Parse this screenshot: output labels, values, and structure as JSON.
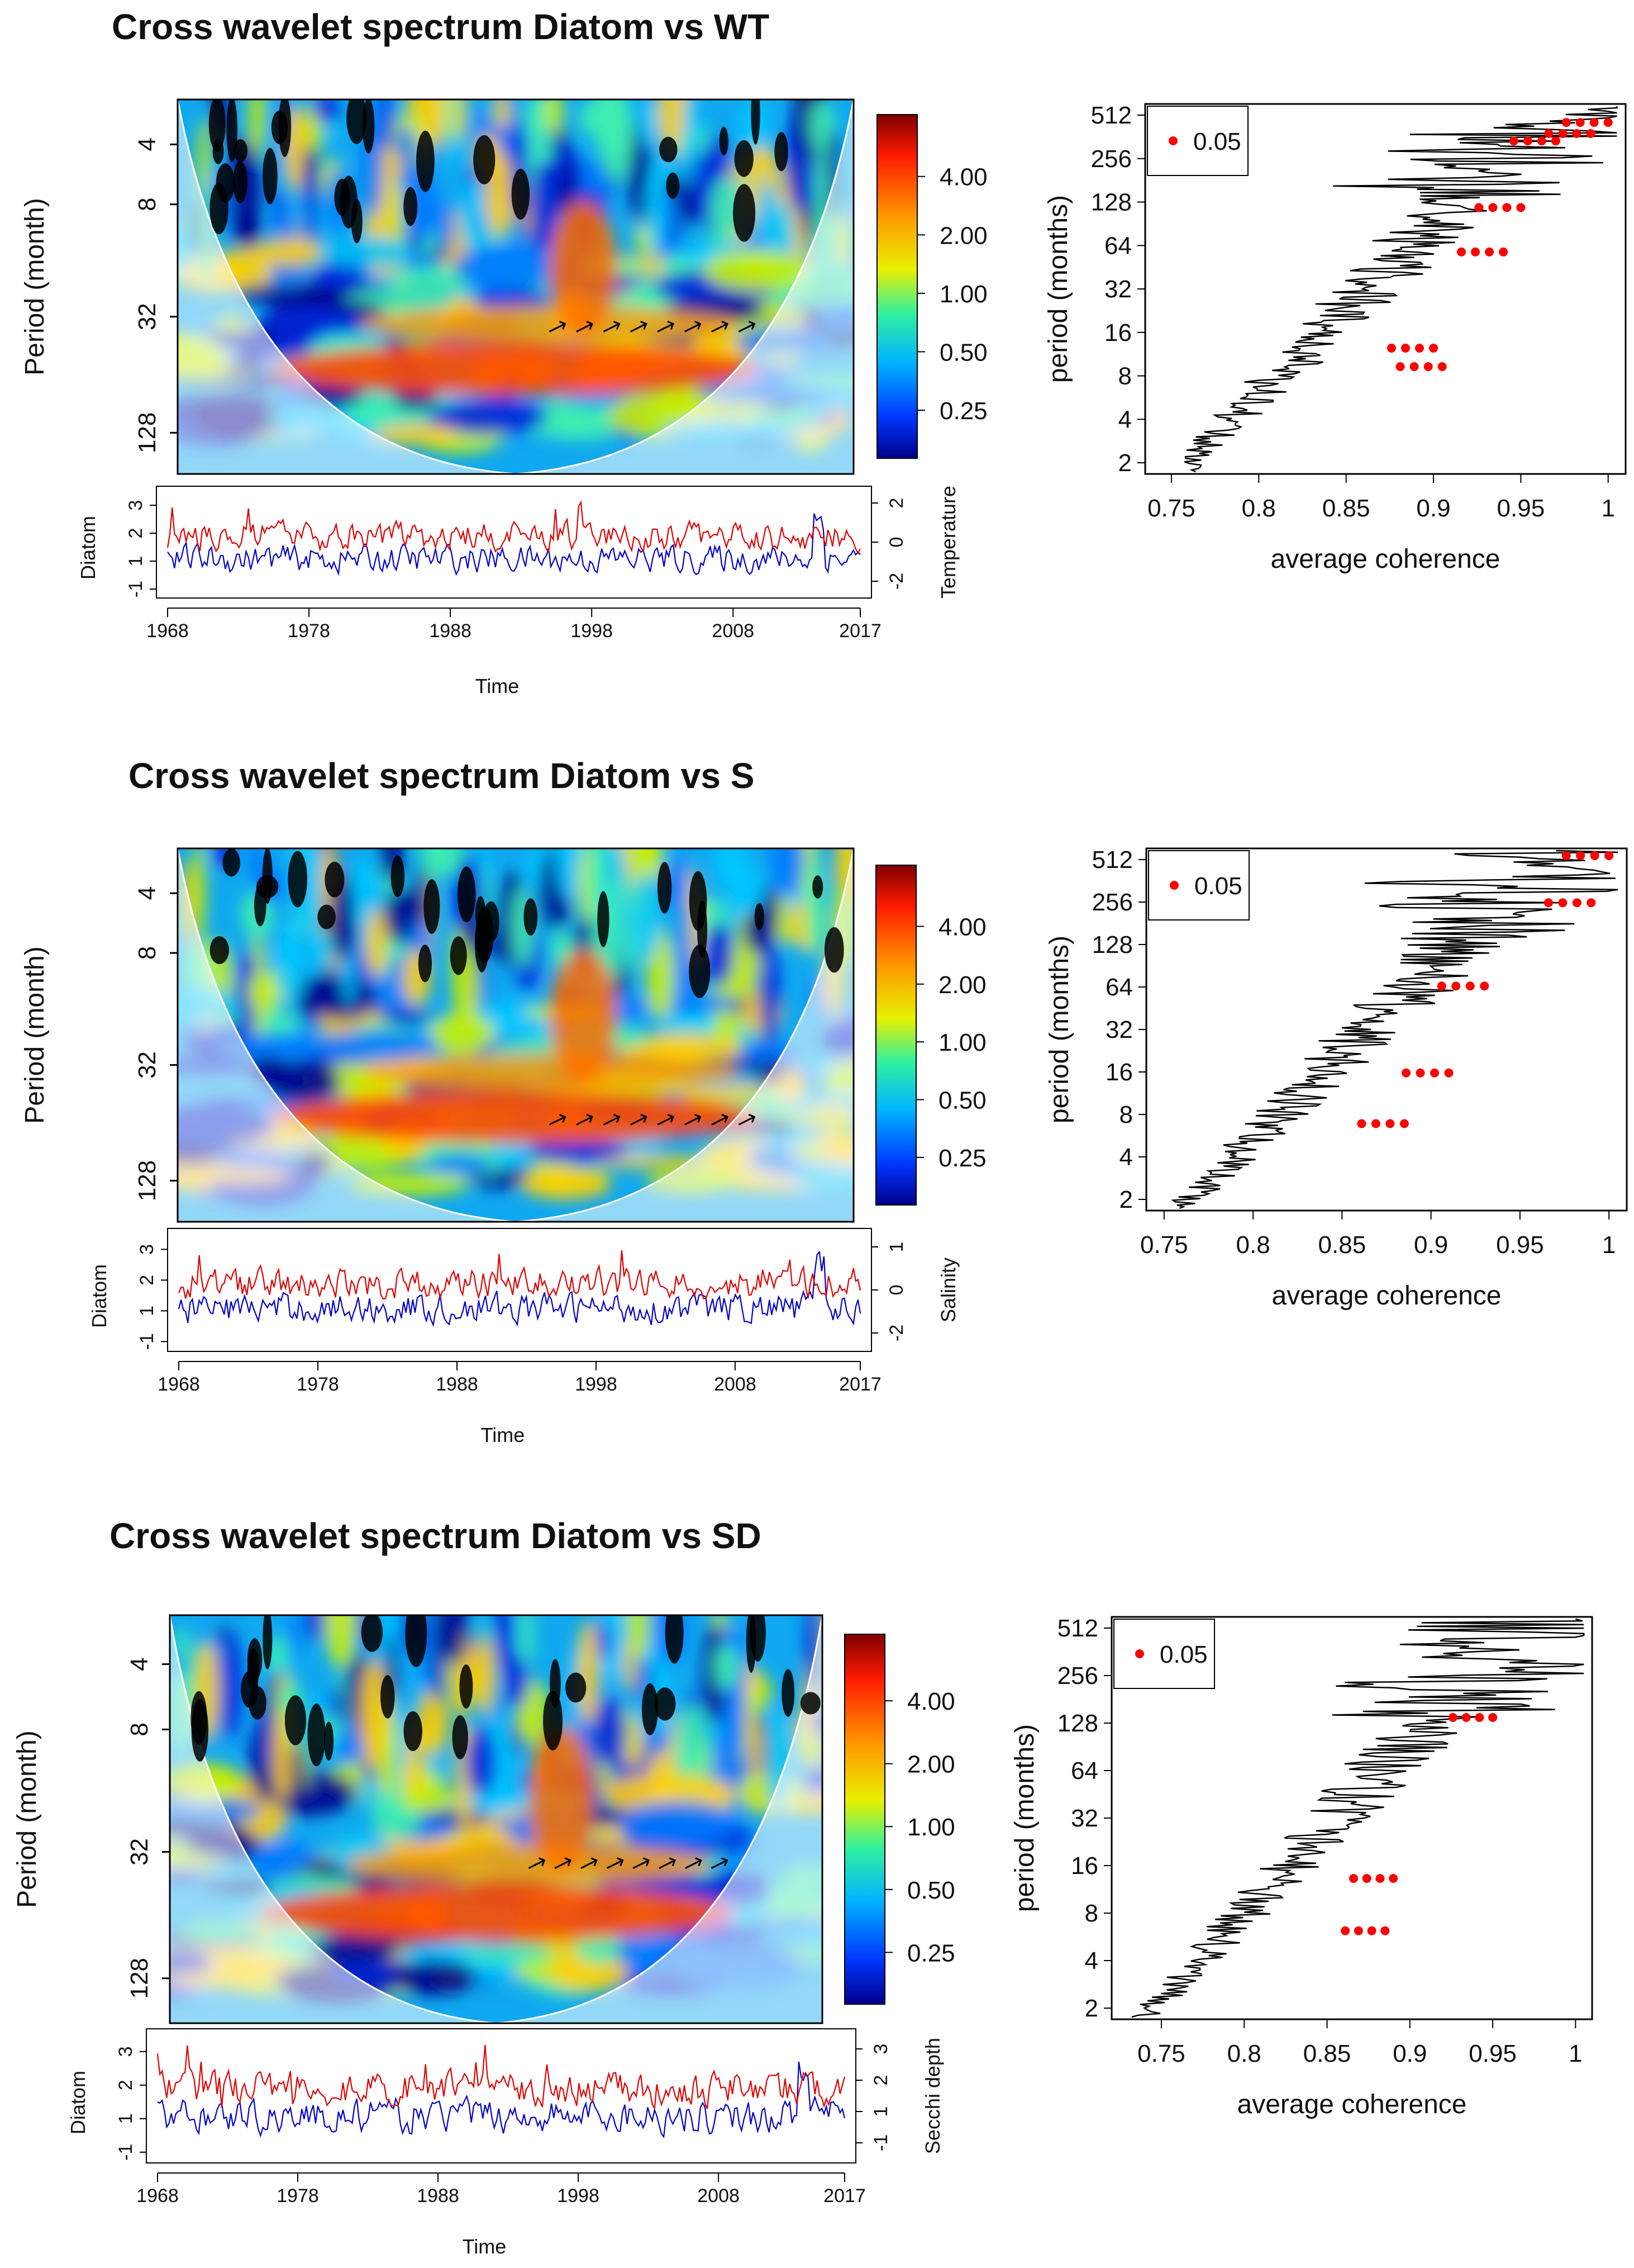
{
  "chart_data": [
    {
      "type": "heatmap",
      "title": "Cross wavelet spectrum Diatom vs WT",
      "ylabel": "Period (month)",
      "y_ticks": [
        "4",
        "8",
        "32",
        "128"
      ],
      "colorbar_ticks": [
        "4.00",
        "2.00",
        "1.00",
        "0.50",
        "0.25"
      ],
      "series_panel": {
        "left_label": "Diatom",
        "right_label": "Temperature",
        "left_ticks": [
          "-1",
          "1",
          "2",
          "3"
        ],
        "right_ticks": [
          "-2",
          "0",
          "2"
        ],
        "x_ticks": [
          "1968",
          "1978",
          "1988",
          "1998",
          "2008",
          "2017"
        ],
        "xlabel": "Time"
      },
      "coherence": {
        "xlabel": "average coherence",
        "ylabel": "period (months)",
        "x_ticks": [
          "0.75",
          "0.8",
          "0.85",
          "0.9",
          "0.95",
          "1"
        ],
        "y_ticks": [
          "512",
          "256",
          "128",
          "64",
          "32",
          "16",
          "8",
          "4",
          "2"
        ],
        "legend": "0.05",
        "xlim": [
          0.735,
          1.01
        ]
      }
    },
    {
      "type": "heatmap",
      "title": "Cross wavelet spectrum Diatom vs S",
      "ylabel": "Period (month)",
      "y_ticks": [
        "4",
        "8",
        "32",
        "128"
      ],
      "colorbar_ticks": [
        "4.00",
        "2.00",
        "1.00",
        "0.50",
        "0.25"
      ],
      "series_panel": {
        "left_label": "Diatom",
        "right_label": "Salinity",
        "left_ticks": [
          "-1",
          "1",
          "2",
          "3"
        ],
        "right_ticks": [
          "-2",
          "0",
          "1"
        ],
        "x_ticks": [
          "1968",
          "1978",
          "1988",
          "1998",
          "2008",
          "2017"
        ],
        "xlabel": "Time"
      },
      "coherence": {
        "xlabel": "average coherence",
        "ylabel": "period (months)",
        "x_ticks": [
          "0.75",
          "0.8",
          "0.85",
          "0.9",
          "0.95",
          "1"
        ],
        "y_ticks": [
          "512",
          "256",
          "128",
          "64",
          "32",
          "16",
          "8",
          "4",
          "2"
        ],
        "legend": "0.05",
        "xlim": [
          0.74,
          1.01
        ]
      }
    },
    {
      "type": "heatmap",
      "title": "Cross wavelet spectrum Diatom vs SD",
      "ylabel": "Period (month)",
      "y_ticks": [
        "4",
        "8",
        "32",
        "128"
      ],
      "colorbar_ticks": [
        "4.00",
        "2.00",
        "1.00",
        "0.50",
        "0.25"
      ],
      "series_panel": {
        "left_label": "Diatom",
        "right_label": "Secchi depth",
        "left_ticks": [
          "-1",
          "1",
          "2",
          "3"
        ],
        "right_ticks": [
          "-1",
          "1",
          "2",
          "3"
        ],
        "x_ticks": [
          "1968",
          "1978",
          "1988",
          "1998",
          "2008",
          "2017"
        ],
        "xlabel": "Time"
      },
      "coherence": {
        "xlabel": "average coherence",
        "ylabel": "period (months)",
        "x_ticks": [
          "0.75",
          "0.8",
          "0.85",
          "0.9",
          "0.95",
          "1"
        ],
        "y_ticks": [
          "512",
          "256",
          "128",
          "64",
          "32",
          "16",
          "8",
          "4",
          "2"
        ],
        "legend": "0.05",
        "xlim": [
          0.72,
          1.01
        ]
      }
    }
  ]
}
